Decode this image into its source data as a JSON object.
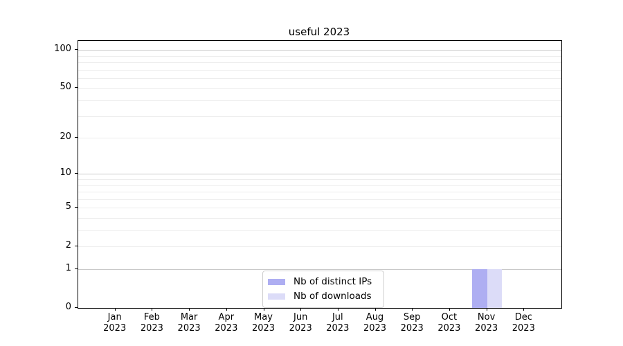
{
  "title": "useful 2023",
  "chart_data": {
    "type": "bar",
    "title": "useful 2023",
    "categories": [
      "Jan 2023",
      "Feb 2023",
      "Mar 2023",
      "Apr 2023",
      "May 2023",
      "Jun 2023",
      "Jul 2023",
      "Aug 2023",
      "Sep 2023",
      "Oct 2023",
      "Nov 2023",
      "Dec 2023"
    ],
    "series": [
      {
        "name": "Nb of distinct IPs",
        "color": "#aeaef2",
        "values": [
          0,
          0,
          0,
          0,
          0,
          0,
          0,
          0,
          0,
          0,
          1,
          0
        ]
      },
      {
        "name": "Nb of downloads",
        "color": "#dcdcf8",
        "values": [
          0,
          0,
          0,
          0,
          0,
          0,
          0,
          0,
          0,
          0,
          1,
          0
        ]
      }
    ],
    "xlabel": "",
    "ylabel": "",
    "yscale": "log1p",
    "ylim": [
      0,
      118
    ],
    "y_ticks": [
      0,
      1,
      2,
      5,
      10,
      20,
      50,
      100
    ],
    "y_major_gridlines": [
      1,
      10,
      100
    ],
    "y_minor_gridlines": [
      2,
      3,
      4,
      5,
      6,
      7,
      8,
      9,
      20,
      30,
      40,
      50,
      60,
      70,
      80,
      90
    ],
    "grid": true,
    "legend": {
      "position": "lower center-right inside plot",
      "entries": [
        "Nb of distinct IPs",
        "Nb of downloads"
      ]
    }
  },
  "colors": {
    "background": "#ffffff",
    "axis": "#000000",
    "major_grid": "#c9c9c9",
    "minor_grid": "#ededed",
    "legend_border": "#cfcfcf",
    "text": "#000000"
  }
}
